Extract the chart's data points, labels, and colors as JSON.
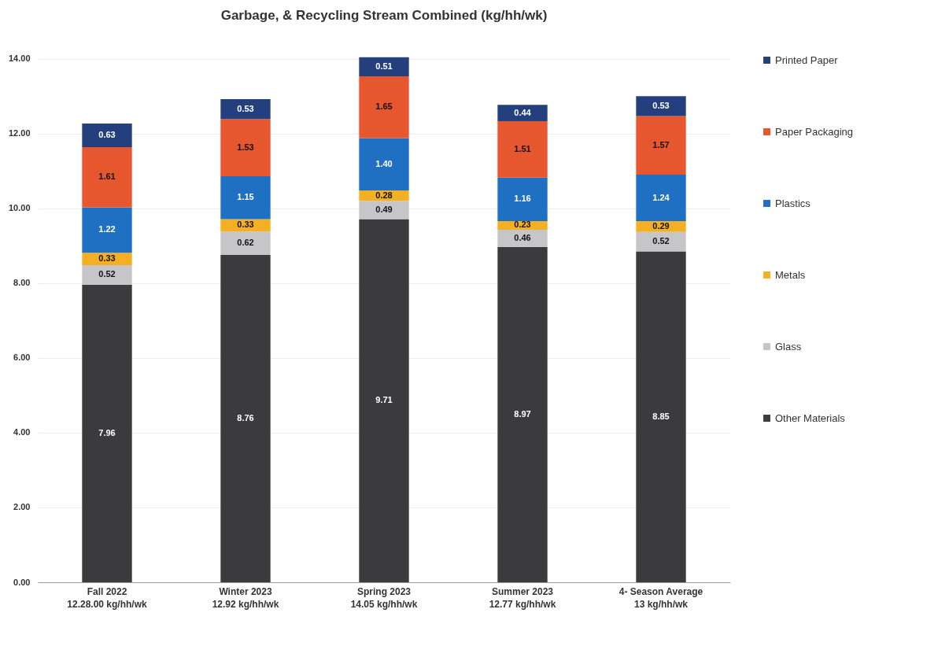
{
  "chart_data": {
    "type": "bar",
    "stacked": true,
    "title": "Garbage, & Recycling Stream Combined (kg/hh/wk)",
    "categories": [
      "Fall 2022\n12.28.00 kg/hh/wk",
      "Winter 2023\n12.92 kg/hh/wk",
      "Spring 2023\n14.05 kg/hh/wk",
      "Summer 2023\n12.77 kg/hh/wk",
      "4- Season Average\n13 kg/hh/wk"
    ],
    "series": [
      {
        "name": "Other Materials",
        "color": "#3b3b3d",
        "values": [
          7.96,
          8.76,
          9.71,
          8.97,
          8.85
        ],
        "value_labels": [
          "7.96",
          "8.76",
          "9.71",
          "8.97",
          "8.85"
        ]
      },
      {
        "name": "Glass",
        "color": "#c6c6c8",
        "values": [
          0.52,
          0.62,
          0.49,
          0.46,
          0.52
        ],
        "value_labels": [
          "0.52",
          "0.62",
          "0.49",
          "0.46",
          "0.52"
        ]
      },
      {
        "name": "Metals",
        "color": "#f4b024",
        "values": [
          0.33,
          0.33,
          0.28,
          0.23,
          0.29
        ],
        "value_labels": [
          "0.33",
          "0.33",
          "0.28",
          "0.23",
          "0.29"
        ]
      },
      {
        "name": "Plastics",
        "color": "#1f6fc2",
        "values": [
          1.22,
          1.15,
          1.4,
          1.16,
          1.24
        ],
        "value_labels": [
          "1.22",
          "1.15",
          "1.40",
          "1.16",
          "1.24"
        ]
      },
      {
        "name": "Paper Packaging",
        "color": "#e6562f",
        "values": [
          1.61,
          1.53,
          1.65,
          1.51,
          1.57
        ],
        "value_labels": [
          "1.61",
          "1.53",
          "1.65",
          "1.51",
          "1.57"
        ]
      },
      {
        "name": "Printed Paper",
        "color": "#233f7e",
        "values": [
          0.63,
          0.53,
          0.51,
          0.44,
          0.53
        ],
        "value_labels": [
          "0.63",
          "0.53",
          "0.51",
          "0.44",
          "0.53"
        ]
      }
    ],
    "ylim": [
      0,
      14.1
    ],
    "yticks": [
      {
        "value": 0,
        "label": "0.00"
      },
      {
        "value": 2,
        "label": "2.00"
      },
      {
        "value": 4,
        "label": "4.00"
      },
      {
        "value": 6,
        "label": "6.00"
      },
      {
        "value": 8,
        "label": "8.00"
      },
      {
        "value": 10,
        "label": "10.00"
      },
      {
        "value": 12,
        "label": "12.00"
      },
      {
        "value": 14,
        "label": "14.00"
      }
    ],
    "grid": "y",
    "legend": "right"
  }
}
